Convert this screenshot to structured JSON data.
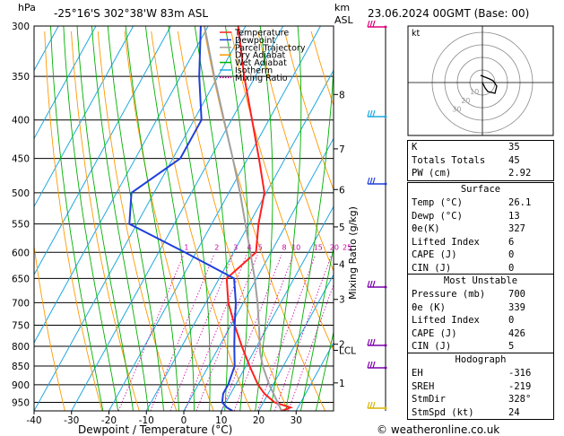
{
  "header": {
    "pressure_unit": "hPa",
    "location": "-25°16'S  302°38'W  83m  ASL",
    "height_unit_km": "km",
    "height_unit_asl": "ASL",
    "datetime": "23.06.2024  00GMT  (Base: 00)"
  },
  "footer": {
    "xlabel": "Dewpoint / Temperature (°C)",
    "credit": "© weatheronline.co.uk"
  },
  "legend": [
    {
      "label": "Temperature",
      "color": "#ff2020",
      "style": "solid"
    },
    {
      "label": "Dewpoint",
      "color": "#1f3fdc",
      "style": "solid"
    },
    {
      "label": "Parcel Trajectory",
      "color": "#a0a0a0",
      "style": "solid"
    },
    {
      "label": "Dry Adiabat",
      "color": "#ff9900",
      "style": "solid"
    },
    {
      "label": "Wet Adiabat",
      "color": "#00b000",
      "style": "solid"
    },
    {
      "label": "Isotherm",
      "color": "#1fa8e0",
      "style": "solid"
    },
    {
      "label": "Mixing Ratio",
      "color": "#cc00aa",
      "style": "dotted"
    }
  ],
  "chart_data": {
    "type": "line",
    "title": "",
    "xlabel": "Dewpoint / Temperature (°C)",
    "ylabel": "hPa",
    "xlim": [
      -40,
      40
    ],
    "ylim": [
      975,
      300
    ],
    "x_ticks": [
      -40,
      -30,
      -20,
      -10,
      0,
      10,
      20,
      30
    ],
    "pressure_ticks": [
      300,
      350,
      400,
      450,
      500,
      550,
      600,
      650,
      700,
      750,
      800,
      850,
      900,
      950
    ],
    "km_ticks": [
      {
        "p": 370,
        "label": "8"
      },
      {
        "p": 437,
        "label": "7"
      },
      {
        "p": 495,
        "label": "6"
      },
      {
        "p": 555,
        "label": "5"
      },
      {
        "p": 622,
        "label": "4"
      },
      {
        "p": 693,
        "label": "3"
      },
      {
        "p": 795,
        "label": "2"
      },
      {
        "p": 810,
        "label": "LCL"
      },
      {
        "p": 895,
        "label": "1"
      }
    ],
    "mixing_ratio_label": "Mixing Ratio (g/kg)",
    "mixing_ratio_values": [
      "1",
      "2",
      "3",
      "4",
      "5",
      "8",
      "10",
      "15",
      "20",
      "25"
    ],
    "series": [
      {
        "name": "Temperature",
        "color": "#ff2020",
        "p": [
          975,
          965,
          950,
          925,
          900,
          850,
          800,
          750,
          700,
          650,
          600,
          550,
          500,
          450,
          400,
          350,
          300
        ],
        "t": [
          26.1,
          28,
          23,
          19,
          16,
          11,
          6,
          1,
          -4,
          -8,
          -4,
          -7.5,
          -10.5,
          -17,
          -24.5,
          -33,
          -42
        ]
      },
      {
        "name": "Dewpoint",
        "color": "#1f3fdc",
        "p": [
          975,
          965,
          950,
          925,
          900,
          850,
          800,
          750,
          700,
          650,
          600,
          550,
          500,
          450,
          400,
          350,
          300
        ],
        "t": [
          13,
          11,
          9,
          8,
          8,
          7,
          4,
          1,
          -2,
          -6,
          -23,
          -42,
          -46,
          -38,
          -38,
          -45,
          -52
        ]
      },
      {
        "name": "Parcel Trajectory",
        "color": "#a0a0a0",
        "p": [
          975,
          950,
          900,
          850,
          815,
          750,
          700,
          650,
          600,
          550,
          500,
          450,
          400,
          350,
          300
        ],
        "t": [
          26.1,
          23.8,
          19,
          14.5,
          11.8,
          7.5,
          3.8,
          -0.5,
          -5.5,
          -11,
          -17,
          -24,
          -32,
          -41,
          -51
        ]
      }
    ]
  },
  "hodograph": {
    "title": "kt",
    "ring_labels": [
      "10",
      "20",
      "30"
    ]
  },
  "indices": [
    {
      "label": "K",
      "value": "35"
    },
    {
      "label": "Totals Totals",
      "value": "45"
    },
    {
      "label": "PW (cm)",
      "value": "2.92"
    }
  ],
  "surface": {
    "title": "Surface",
    "rows": [
      {
        "label": "Temp (°C)",
        "value": "26.1"
      },
      {
        "label": "Dewp (°C)",
        "value": "13"
      },
      {
        "label": "θe(K)",
        "value": "327"
      },
      {
        "label": "Lifted Index",
        "value": "6"
      },
      {
        "label": "CAPE (J)",
        "value": "0"
      },
      {
        "label": "CIN (J)",
        "value": "0"
      }
    ]
  },
  "most_unstable": {
    "title": "Most Unstable",
    "rows": [
      {
        "label": "Pressure (mb)",
        "value": "700"
      },
      {
        "label": "θe (K)",
        "value": "339"
      },
      {
        "label": "Lifted Index",
        "value": "0"
      },
      {
        "label": "CAPE (J)",
        "value": "426"
      },
      {
        "label": "CIN (J)",
        "value": "5"
      }
    ]
  },
  "hodograph_table": {
    "title": "Hodograph",
    "rows": [
      {
        "label": "EH",
        "value": "-316"
      },
      {
        "label": "SREH",
        "value": "-219"
      },
      {
        "label": "StmDir",
        "value": "328°"
      },
      {
        "label": "StmSpd (kt)",
        "value": "24"
      }
    ]
  }
}
